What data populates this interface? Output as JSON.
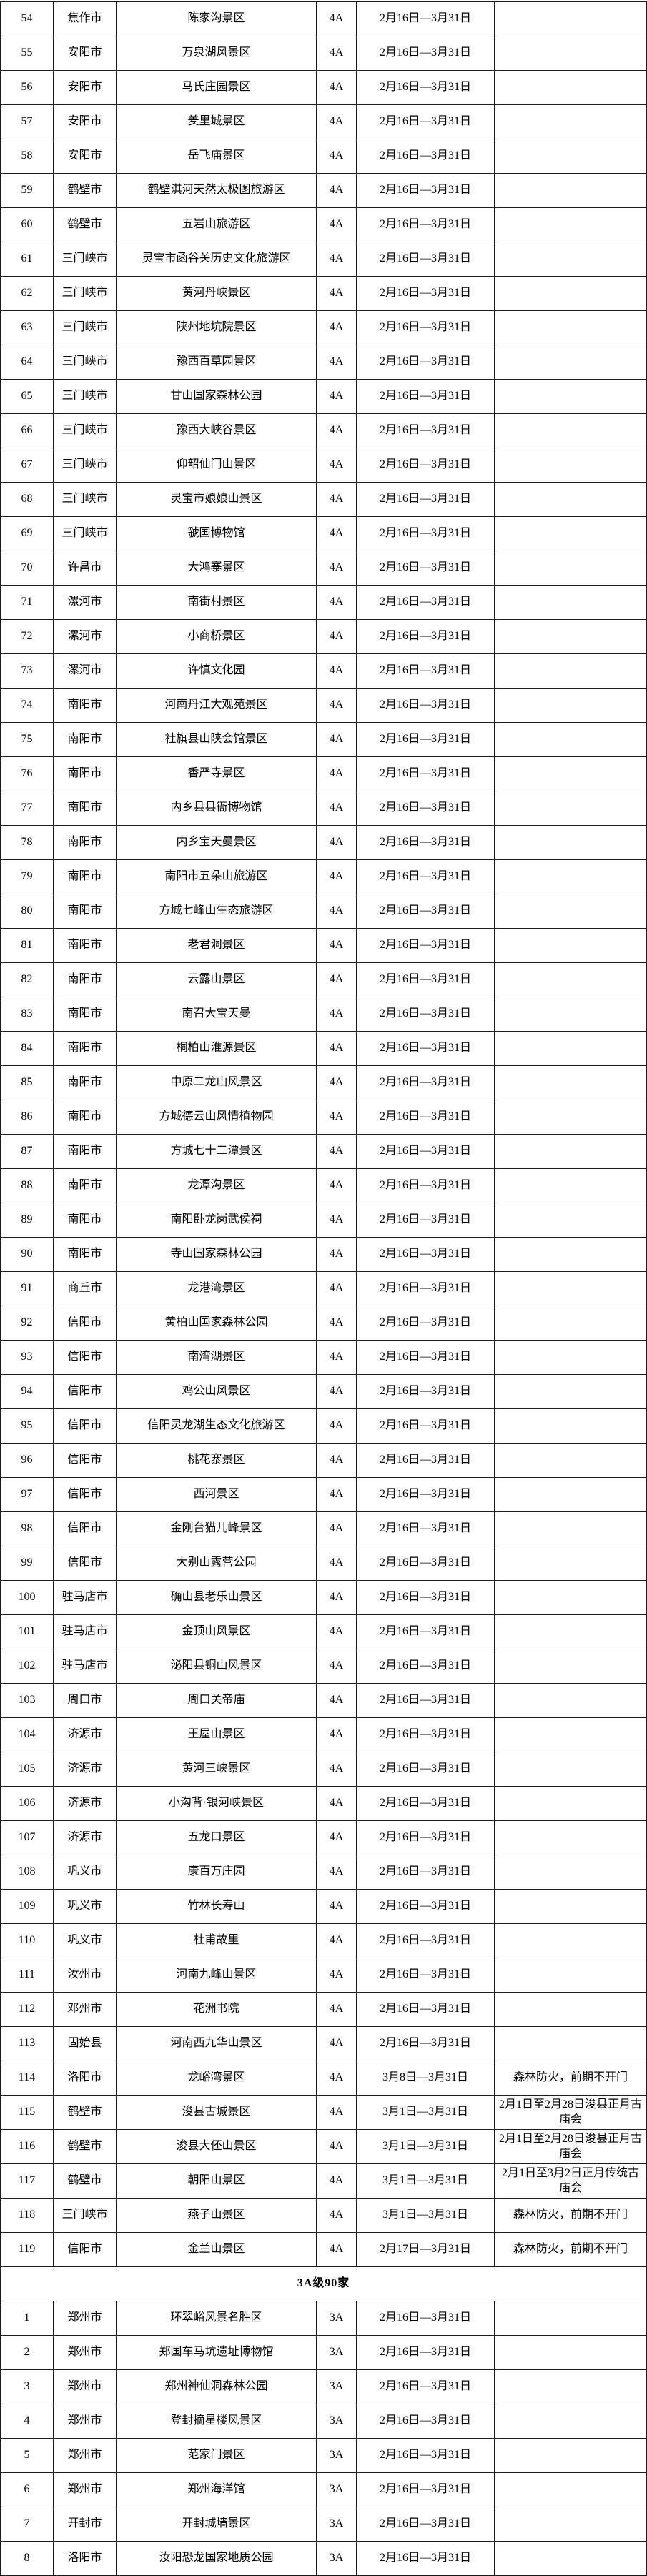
{
  "page": {
    "background_color": "#ffffff",
    "border_color": "#1c1c1c",
    "text_color": "#000000"
  },
  "table": {
    "sections": [
      {
        "header": "",
        "rows": [
          [
            "54",
            "焦作市",
            "陈家沟景区",
            "4A",
            "2月16日—3月31日",
            ""
          ],
          [
            "55",
            "安阳市",
            "万泉湖风景区",
            "4A",
            "2月16日—3月31日",
            ""
          ],
          [
            "56",
            "安阳市",
            "马氏庄园景区",
            "4A",
            "2月16日—3月31日",
            ""
          ],
          [
            "57",
            "安阳市",
            "羑里城景区",
            "4A",
            "2月16日—3月31日",
            ""
          ],
          [
            "58",
            "安阳市",
            "岳飞庙景区",
            "4A",
            "2月16日—3月31日",
            ""
          ],
          [
            "59",
            "鹤壁市",
            "鹤壁淇河天然太极图旅游区",
            "4A",
            "2月16日—3月31日",
            ""
          ],
          [
            "60",
            "鹤壁市",
            "五岩山旅游区",
            "4A",
            "2月16日—3月31日",
            ""
          ],
          [
            "61",
            "三门峡市",
            "灵宝市函谷关历史文化旅游区",
            "4A",
            "2月16日—3月31日",
            ""
          ],
          [
            "62",
            "三门峡市",
            "黄河丹峡景区",
            "4A",
            "2月16日—3月31日",
            ""
          ],
          [
            "63",
            "三门峡市",
            "陕州地坑院景区",
            "4A",
            "2月16日—3月31日",
            ""
          ],
          [
            "64",
            "三门峡市",
            "豫西百草园景区",
            "4A",
            "2月16日—3月31日",
            ""
          ],
          [
            "65",
            "三门峡市",
            "甘山国家森林公园",
            "4A",
            "2月16日—3月31日",
            ""
          ],
          [
            "66",
            "三门峡市",
            "豫西大峡谷景区",
            "4A",
            "2月16日—3月31日",
            ""
          ],
          [
            "67",
            "三门峡市",
            "仰韶仙门山景区",
            "4A",
            "2月16日—3月31日",
            ""
          ],
          [
            "68",
            "三门峡市",
            "灵宝市娘娘山景区",
            "4A",
            "2月16日—3月31日",
            ""
          ],
          [
            "69",
            "三门峡市",
            "虢国博物馆",
            "4A",
            "2月16日—3月31日",
            ""
          ],
          [
            "70",
            "许昌市",
            "大鸿寨景区",
            "4A",
            "2月16日—3月31日",
            ""
          ],
          [
            "71",
            "漯河市",
            "南街村景区",
            "4A",
            "2月16日—3月31日",
            ""
          ],
          [
            "72",
            "漯河市",
            "小商桥景区",
            "4A",
            "2月16日—3月31日",
            ""
          ],
          [
            "73",
            "漯河市",
            "许慎文化园",
            "4A",
            "2月16日—3月31日",
            ""
          ],
          [
            "74",
            "南阳市",
            "河南丹江大观苑景区",
            "4A",
            "2月16日—3月31日",
            ""
          ],
          [
            "75",
            "南阳市",
            "社旗县山陕会馆景区",
            "4A",
            "2月16日—3月31日",
            ""
          ],
          [
            "76",
            "南阳市",
            "香严寺景区",
            "4A",
            "2月16日—3月31日",
            ""
          ],
          [
            "77",
            "南阳市",
            "内乡县县衙博物馆",
            "4A",
            "2月16日—3月31日",
            ""
          ],
          [
            "78",
            "南阳市",
            "内乡宝天曼景区",
            "4A",
            "2月16日—3月31日",
            ""
          ],
          [
            "79",
            "南阳市",
            "南阳市五朵山旅游区",
            "4A",
            "2月16日—3月31日",
            ""
          ],
          [
            "80",
            "南阳市",
            "方城七峰山生态旅游区",
            "4A",
            "2月16日—3月31日",
            ""
          ],
          [
            "81",
            "南阳市",
            "老君洞景区",
            "4A",
            "2月16日—3月31日",
            ""
          ],
          [
            "82",
            "南阳市",
            "云露山景区",
            "4A",
            "2月16日—3月31日",
            ""
          ],
          [
            "83",
            "南阳市",
            "南召大宝天曼",
            "4A",
            "2月16日—3月31日",
            ""
          ],
          [
            "84",
            "南阳市",
            "桐柏山淮源景区",
            "4A",
            "2月16日—3月31日",
            ""
          ],
          [
            "85",
            "南阳市",
            "中原二龙山风景区",
            "4A",
            "2月16日—3月31日",
            ""
          ],
          [
            "86",
            "南阳市",
            "方城德云山风情植物园",
            "4A",
            "2月16日—3月31日",
            ""
          ],
          [
            "87",
            "南阳市",
            "方城七十二潭景区",
            "4A",
            "2月16日—3月31日",
            ""
          ],
          [
            "88",
            "南阳市",
            "龙潭沟景区",
            "4A",
            "2月16日—3月31日",
            ""
          ],
          [
            "89",
            "南阳市",
            "南阳卧龙岗武侯祠",
            "4A",
            "2月16日—3月31日",
            ""
          ],
          [
            "90",
            "南阳市",
            "寺山国家森林公园",
            "4A",
            "2月16日—3月31日",
            ""
          ],
          [
            "91",
            "商丘市",
            "龙港湾景区",
            "4A",
            "2月16日—3月31日",
            ""
          ],
          [
            "92",
            "信阳市",
            "黄柏山国家森林公园",
            "4A",
            "2月16日—3月31日",
            ""
          ],
          [
            "93",
            "信阳市",
            "南湾湖景区",
            "4A",
            "2月16日—3月31日",
            ""
          ],
          [
            "94",
            "信阳市",
            "鸡公山风景区",
            "4A",
            "2月16日—3月31日",
            ""
          ],
          [
            "95",
            "信阳市",
            "信阳灵龙湖生态文化旅游区",
            "4A",
            "2月16日—3月31日",
            ""
          ],
          [
            "96",
            "信阳市",
            "桃花寨景区",
            "4A",
            "2月16日—3月31日",
            ""
          ],
          [
            "97",
            "信阳市",
            "西河景区",
            "4A",
            "2月16日—3月31日",
            ""
          ],
          [
            "98",
            "信阳市",
            "金刚台猫儿峰景区",
            "4A",
            "2月16日—3月31日",
            ""
          ],
          [
            "99",
            "信阳市",
            "大别山露营公园",
            "4A",
            "2月16日—3月31日",
            ""
          ],
          [
            "100",
            "驻马店市",
            "确山县老乐山景区",
            "4A",
            "2月16日—3月31日",
            ""
          ],
          [
            "101",
            "驻马店市",
            "金顶山风景区",
            "4A",
            "2月16日—3月31日",
            ""
          ],
          [
            "102",
            "驻马店市",
            "泌阳县铜山风景区",
            "4A",
            "2月16日—3月31日",
            ""
          ],
          [
            "103",
            "周口市",
            "周口关帝庙",
            "4A",
            "2月16日—3月31日",
            ""
          ],
          [
            "104",
            "济源市",
            "王屋山景区",
            "4A",
            "2月16日—3月31日",
            ""
          ],
          [
            "105",
            "济源市",
            "黄河三峡景区",
            "4A",
            "2月16日—3月31日",
            ""
          ],
          [
            "106",
            "济源市",
            "小沟背·银河峡景区",
            "4A",
            "2月16日—3月31日",
            ""
          ],
          [
            "107",
            "济源市",
            "五龙口景区",
            "4A",
            "2月16日—3月31日",
            ""
          ],
          [
            "108",
            "巩义市",
            "康百万庄园",
            "4A",
            "2月16日—3月31日",
            ""
          ],
          [
            "109",
            "巩义市",
            "竹林长寿山",
            "4A",
            "2月16日—3月31日",
            ""
          ],
          [
            "110",
            "巩义市",
            "杜甫故里",
            "4A",
            "2月16日—3月31日",
            ""
          ],
          [
            "111",
            "汝州市",
            "河南九峰山景区",
            "4A",
            "2月16日—3月31日",
            ""
          ],
          [
            "112",
            "邓州市",
            "花洲书院",
            "4A",
            "2月16日—3月31日",
            ""
          ],
          [
            "113",
            "固始县",
            "河南西九华山景区",
            "4A",
            "2月16日—3月31日",
            ""
          ],
          [
            "114",
            "洛阳市",
            "龙峪湾景区",
            "4A",
            "3月8日—3月31日",
            "森林防火，前期不开门"
          ],
          [
            "115",
            "鹤壁市",
            "浚县古城景区",
            "4A",
            "3月1日—3月31日",
            "2月1日至2月28日浚县正月古庙会"
          ],
          [
            "116",
            "鹤壁市",
            "浚县大伾山景区",
            "4A",
            "3月1日—3月31日",
            "2月1日至2月28日浚县正月古庙会"
          ],
          [
            "117",
            "鹤壁市",
            "朝阳山景区",
            "4A",
            "3月1日—3月31日",
            "2月1日至3月2日正月传统古庙会"
          ],
          [
            "118",
            "三门峡市",
            "燕子山景区",
            "4A",
            "3月1日—3月31日",
            "森林防火，前期不开门"
          ],
          [
            "119",
            "信阳市",
            "金兰山景区",
            "4A",
            "2月17日—3月31日",
            "森林防火，前期不开门"
          ]
        ]
      },
      {
        "header": "3A级90家",
        "rows": [
          [
            "1",
            "郑州市",
            "环翠峪风景名胜区",
            "3A",
            "2月16日—3月31日",
            ""
          ],
          [
            "2",
            "郑州市",
            "郑国车马坑遗址博物馆",
            "3A",
            "2月16日—3月31日",
            ""
          ],
          [
            "3",
            "郑州市",
            "郑州神仙洞森林公园",
            "3A",
            "2月16日—3月31日",
            ""
          ],
          [
            "4",
            "郑州市",
            "登封摘星楼风景区",
            "3A",
            "2月16日—3月31日",
            ""
          ],
          [
            "5",
            "郑州市",
            "范家门景区",
            "3A",
            "2月16日—3月31日",
            ""
          ],
          [
            "6",
            "郑州市",
            "郑州海洋馆",
            "3A",
            "2月16日—3月31日",
            ""
          ],
          [
            "7",
            "开封市",
            "开封城墙景区",
            "3A",
            "2月16日—3月31日",
            ""
          ],
          [
            "8",
            "洛阳市",
            "汝阳恐龙国家地质公园",
            "3A",
            "2月16日—3月31日",
            ""
          ]
        ]
      }
    ]
  }
}
